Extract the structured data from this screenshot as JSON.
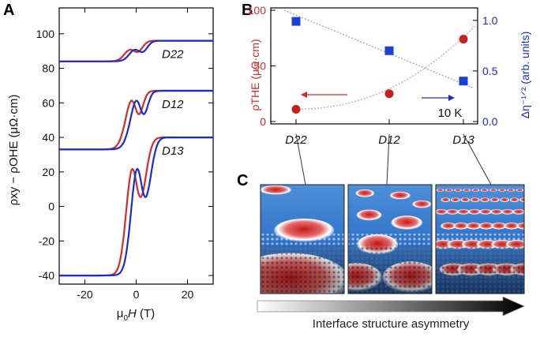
{
  "panels": {
    "a": "A",
    "b": "B",
    "c": "C"
  },
  "chart_data": [
    {
      "type": "line",
      "xlabel_prefix": "μ",
      "xlabel_sub": "0",
      "xlabel_var": "H",
      "xlabel_unit": " (T)",
      "ylabel": "ρxy − ρOHE (μΩ·cm)",
      "xlim": [
        -30,
        30
      ],
      "ylim": [
        -45,
        115
      ],
      "xticks": [
        -20,
        0,
        20
      ],
      "yticks": [
        -40,
        -20,
        0,
        20,
        40,
        60,
        80,
        100
      ],
      "series_colors": [
        "#d42a2a",
        "#1b2bd0"
      ],
      "curves": [
        {
          "label": "D22",
          "offset": 84,
          "saturation": 12,
          "model": "small_dip"
        },
        {
          "label": "D12",
          "offset": 33,
          "saturation": 34,
          "model": "medium"
        },
        {
          "label": "D13",
          "offset": -40,
          "saturation": 80,
          "model": "large"
        }
      ]
    },
    {
      "type": "scatter",
      "categories": [
        "D22",
        "D12",
        "D13"
      ],
      "left_axis": {
        "label": "ρTHE (μΩ·cm)",
        "ylim": [
          0,
          100
        ],
        "ticks": [
          0,
          50,
          100
        ],
        "color": "#d42a2a"
      },
      "right_axis": {
        "label": "Δη⁻¹ᐟ² (arb. units)",
        "ylim": [
          0,
          1.1
        ],
        "ticks": [
          "0.0",
          "0.5",
          "1.0"
        ],
        "color": "#1b2bd0"
      },
      "series": [
        {
          "name": "ρTHE",
          "axis": "left",
          "marker": "circle",
          "color": "#c81e1e",
          "values": [
            11,
            25,
            74
          ]
        },
        {
          "name": "Δη⁻¹ᐟ²",
          "axis": "right",
          "marker": "square",
          "color": "#1b3fd6",
          "values": [
            0.99,
            0.7,
            0.4
          ]
        }
      ],
      "annotation": "10 K",
      "grid": false
    }
  ],
  "images": [
    {
      "label": "D22",
      "density": "sparse"
    },
    {
      "label": "D12",
      "density": "medium"
    },
    {
      "label": "D13",
      "density": "dense"
    }
  ],
  "caption": "Interface structure asymmetry"
}
